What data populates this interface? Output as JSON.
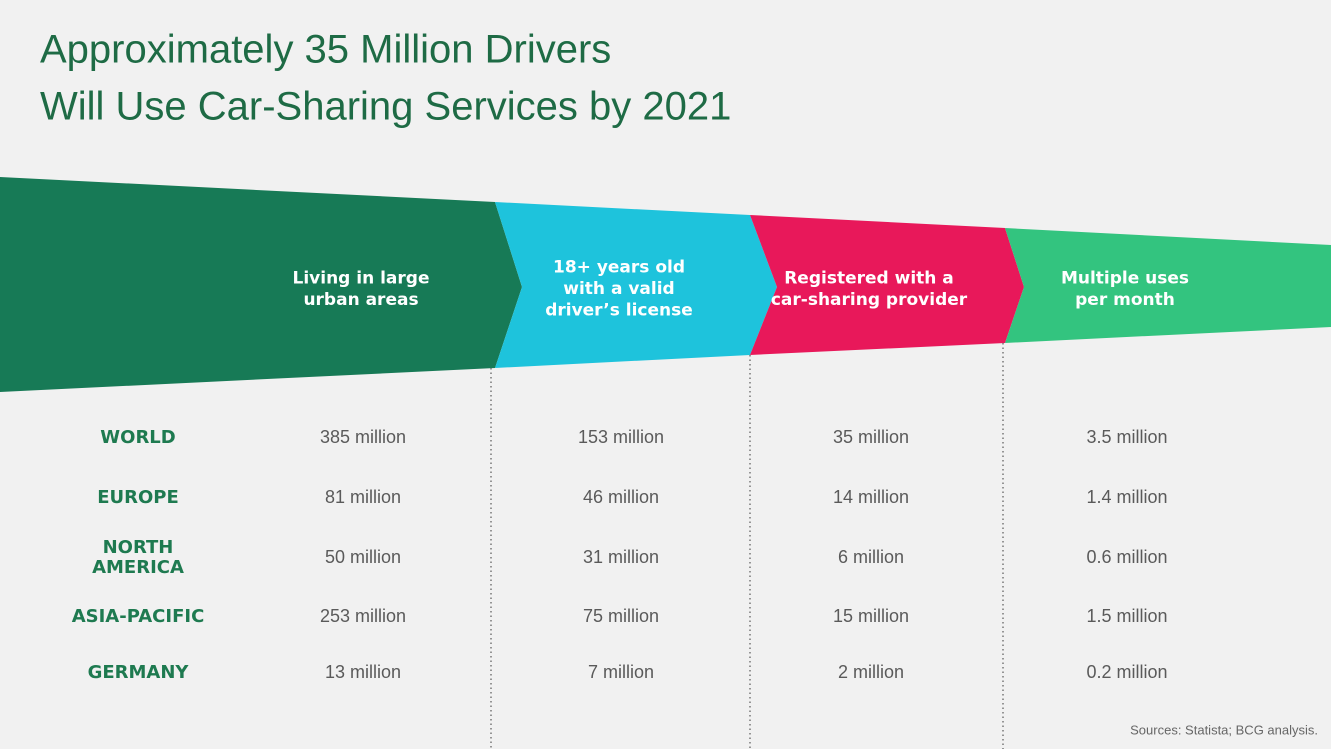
{
  "header": {
    "title": [
      "Approximately 35 Million Drivers",
      "Will Use Car-Sharing Services by 2021"
    ]
  },
  "stages": [
    {
      "lines": [
        "Living in large",
        "urban areas"
      ]
    },
    {
      "lines": [
        "18+ years old",
        "with a valid",
        "driver’s license"
      ]
    },
    {
      "lines": [
        "Registered with a",
        "car-sharing provider"
      ]
    },
    {
      "lines": [
        "Multiple uses",
        "per month"
      ]
    }
  ],
  "table": {
    "rows": [
      {
        "region": [
          "WORLD"
        ],
        "values": [
          "385 million",
          "153 million",
          "35 million",
          "3.5 million"
        ]
      },
      {
        "region": [
          "EUROPE"
        ],
        "values": [
          "81 million",
          "46 million",
          "14 million",
          "1.4 million"
        ]
      },
      {
        "region": [
          "NORTH",
          "AMERICA"
        ],
        "values": [
          "50 million",
          "31 million",
          "6 million",
          "0.6 million"
        ]
      },
      {
        "region": [
          "ASIA-PACIFIC"
        ],
        "values": [
          "253 million",
          "75 million",
          "15 million",
          "1.5 million"
        ]
      },
      {
        "region": [
          "GERMANY"
        ],
        "values": [
          "13 million",
          "7 million",
          "2 million",
          "0.2 million"
        ]
      }
    ]
  },
  "footer": {
    "source": "Sources: Statista; BCG analysis."
  }
}
